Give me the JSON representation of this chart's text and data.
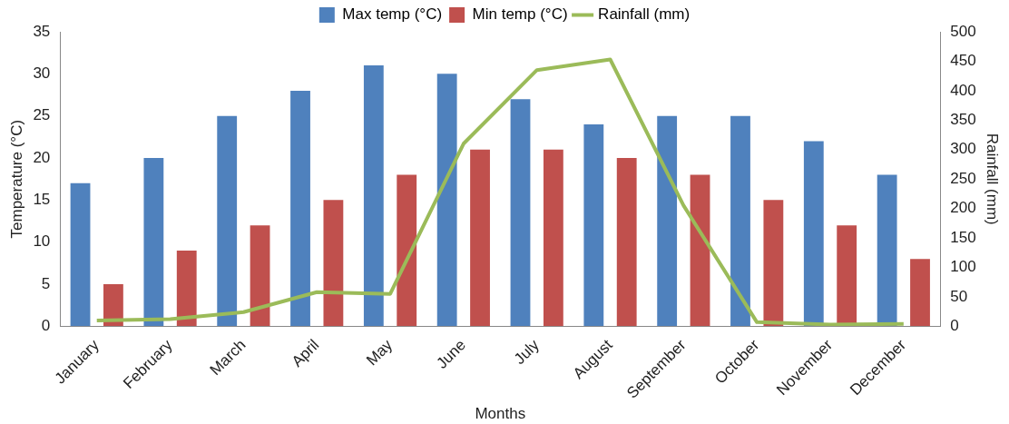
{
  "chart_data": {
    "type": "bar",
    "xlabel": "Months",
    "ylabel": "Temperature (°C)",
    "y2label": "Rainfall (mm)",
    "categories": [
      "January",
      "February",
      "March",
      "April",
      "May",
      "June",
      "July",
      "August",
      "September",
      "October",
      "November",
      "December"
    ],
    "series": [
      {
        "name": "Max temp (°C)",
        "color": "#4f81bd",
        "values": [
          17,
          20,
          25,
          28,
          31,
          30,
          27,
          24,
          25,
          25,
          22,
          18
        ]
      },
      {
        "name": "Min temp (°C)",
        "color": "#c0504d",
        "values": [
          5,
          9,
          12,
          15,
          18,
          21,
          21,
          20,
          18,
          15,
          12,
          8
        ]
      },
      {
        "name": "Rainfall (mm)",
        "type": "line",
        "axis": "y2",
        "color": "#9bbb59",
        "values": [
          10,
          12,
          24,
          58,
          55,
          310,
          435,
          453,
          205,
          7,
          3,
          4
        ]
      }
    ],
    "ylim": [
      0,
      35
    ],
    "yticks": [
      0,
      5,
      10,
      15,
      20,
      25,
      30,
      35
    ],
    "y2lim": [
      0,
      500
    ],
    "y2ticks": [
      0,
      50,
      100,
      150,
      200,
      250,
      300,
      350,
      400,
      450,
      500
    ],
    "grid": false,
    "legend": "top",
    "marker": "none"
  }
}
